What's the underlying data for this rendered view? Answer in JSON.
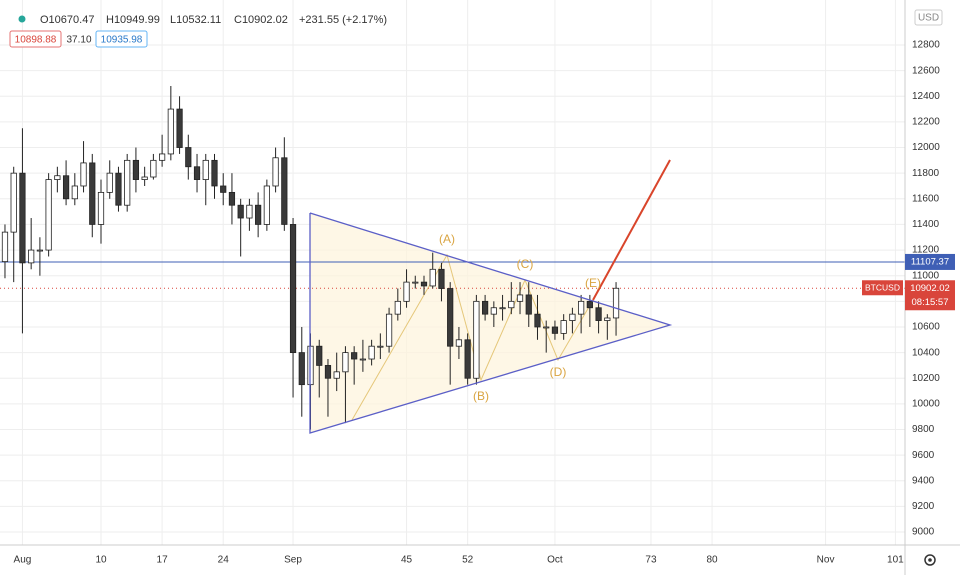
{
  "chart_data": {
    "type": "candlestick",
    "header": [
      "O10670.47",
      "H10949.99",
      "L10532.11",
      "C10902.02",
      "+231.55 (+2.17%)"
    ],
    "indicator_values": [
      "10898.88",
      "37.10",
      "10935.98"
    ],
    "currency": "USD",
    "symbol": "BTCUSD",
    "last_price": 10902.02,
    "countdown": "08:15:57",
    "hline": 11107.37,
    "wave_labels": [
      "(A)",
      "(B)",
      "(C)",
      "(D)",
      "(E)"
    ],
    "up_color": "#ffffff",
    "down_color": "#3a3a3a",
    "x": [
      -1,
      0,
      1,
      2,
      3,
      4,
      5,
      6,
      7,
      8,
      9,
      10,
      11,
      12,
      13,
      14,
      15,
      16,
      17,
      18,
      19,
      20,
      21,
      22,
      23,
      24,
      25,
      26,
      27,
      28,
      29,
      30,
      31,
      32,
      33,
      34,
      35,
      36,
      37,
      38,
      39,
      40,
      41,
      42,
      43,
      44,
      45,
      46,
      47,
      48,
      49,
      50,
      51,
      52,
      53,
      54,
      55,
      56,
      57,
      58,
      59,
      60,
      61,
      62,
      63,
      64,
      65,
      66,
      67,
      68,
      69
    ],
    "open": [
      11110,
      11340,
      11800,
      11100,
      11200,
      11200,
      11750,
      11780,
      11600,
      11700,
      11880,
      11400,
      11650,
      11800,
      11550,
      11900,
      11750,
      11770,
      11900,
      11950,
      12300,
      12000,
      11850,
      11750,
      11900,
      11700,
      11650,
      11550,
      11450,
      11550,
      11400,
      11700,
      11920,
      11400,
      10400,
      10150,
      10450,
      10300,
      10200,
      10250,
      10400,
      10350,
      10350,
      10450,
      10450,
      10700,
      10800,
      10950,
      10950,
      10920,
      11050,
      10900,
      10450,
      10500,
      10200,
      10800,
      10700,
      10750,
      10750,
      10800,
      10850,
      10700,
      10600,
      10600,
      10550,
      10650,
      10700,
      10800,
      10750,
      10650,
      10670.47
    ],
    "high": [
      11400,
      11850,
      12150,
      11450,
      11300,
      11800,
      11850,
      11900,
      11800,
      12050,
      11950,
      11750,
      11900,
      11850,
      11950,
      12000,
      11850,
      11950,
      12100,
      12480,
      12400,
      12100,
      11950,
      11950,
      11950,
      11800,
      11800,
      11600,
      11600,
      11650,
      11750,
      12000,
      12080,
      11450,
      10600,
      10550,
      10500,
      10350,
      10400,
      10450,
      10450,
      10500,
      10500,
      10550,
      10750,
      10900,
      11050,
      11000,
      11000,
      11180,
      11100,
      10950,
      10600,
      10550,
      10850,
      10850,
      10800,
      10850,
      10950,
      10950,
      10950,
      10850,
      10650,
      10650,
      10700,
      10750,
      10850,
      10850,
      10800,
      10700,
      10949.99
    ],
    "low": [
      10980,
      10950,
      10550,
      11050,
      11000,
      11150,
      11650,
      11550,
      11550,
      11650,
      11300,
      11250,
      11600,
      11500,
      11500,
      11650,
      11700,
      11750,
      11850,
      11900,
      11950,
      11750,
      11650,
      11550,
      11600,
      11550,
      11400,
      11150,
      11350,
      11300,
      11350,
      11650,
      11350,
      10050,
      9900,
      9800,
      10050,
      9900,
      10100,
      9850,
      10150,
      10250,
      10300,
      10350,
      10400,
      10650,
      10750,
      10900,
      10850,
      10900,
      10800,
      10150,
      10350,
      10150,
      10150,
      10650,
      10600,
      10650,
      10700,
      10700,
      10600,
      10500,
      10400,
      10500,
      10500,
      10550,
      10550,
      10600,
      10550,
      10500,
      10532.11
    ],
    "close": [
      11340,
      11800,
      11100,
      11200,
      11200,
      11750,
      11780,
      11600,
      11700,
      11880,
      11400,
      11650,
      11800,
      11550,
      11900,
      11750,
      11770,
      11900,
      11950,
      12300,
      12000,
      11850,
      11750,
      11900,
      11700,
      11650,
      11550,
      11450,
      11550,
      11400,
      11700,
      11920,
      11400,
      10400,
      10150,
      10450,
      10300,
      10200,
      10250,
      10400,
      10350,
      10350,
      10450,
      10450,
      10700,
      10800,
      10950,
      10950,
      10920,
      11050,
      10900,
      10450,
      10500,
      10200,
      10800,
      10700,
      10750,
      10750,
      10800,
      10850,
      10700,
      10600,
      10600,
      10550,
      10650,
      10700,
      10800,
      10750,
      10650,
      10670,
      10902.02
    ],
    "xlim": [
      -1.57,
      102.1
    ],
    "xticks": [
      {
        "value": 1,
        "label": "Aug"
      },
      10,
      17,
      24,
      {
        "value": 32,
        "label": "Sep"
      },
      45,
      52,
      {
        "value": 62,
        "label": "Oct"
      },
      73,
      80,
      {
        "value": 93,
        "label": "Nov"
      },
      101
    ],
    "ylim": [
      8899,
      13151
    ],
    "yticks": [
      9000,
      9200,
      9400,
      9600,
      9800,
      10000,
      10200,
      10400,
      10600,
      10800,
      11000,
      11200,
      11400,
      11600,
      11800,
      12000,
      12200,
      12400,
      12600,
      12800
    ],
    "grid": true
  }
}
